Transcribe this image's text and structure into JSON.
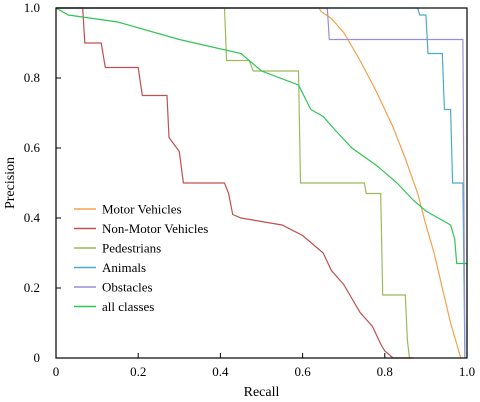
{
  "chart_data": {
    "type": "line",
    "xlabel": "Recall",
    "ylabel": "Precision",
    "xlim": [
      0,
      1
    ],
    "ylim": [
      0,
      1
    ],
    "x_ticks": [
      0,
      0.2,
      0.4,
      0.6,
      0.8,
      1
    ],
    "x_tick_labels": [
      "0",
      "0.2",
      "0.4",
      "0.6",
      "0.8",
      "1.0"
    ],
    "y_ticks": [
      0,
      0.2,
      0.4,
      0.6,
      0.8,
      1
    ],
    "y_tick_labels": [
      "0",
      "0.2",
      "0.4",
      "0.6",
      "0.8",
      "1.0"
    ],
    "grid": false,
    "legend_position": "bottom-left",
    "series": [
      {
        "name": "Motor Vehicles",
        "color": "#f5a04a",
        "points": [
          [
            0,
            1.0
          ],
          [
            0.64,
            1.0
          ],
          [
            0.645,
            0.99
          ],
          [
            0.67,
            0.97
          ],
          [
            0.7,
            0.93
          ],
          [
            0.74,
            0.85
          ],
          [
            0.78,
            0.76
          ],
          [
            0.82,
            0.66
          ],
          [
            0.85,
            0.57
          ],
          [
            0.88,
            0.47
          ],
          [
            0.9,
            0.38
          ],
          [
            0.92,
            0.3
          ],
          [
            0.94,
            0.2
          ],
          [
            0.96,
            0.1
          ],
          [
            0.98,
            0.02
          ],
          [
            0.985,
            0.0
          ]
        ]
      },
      {
        "name": "Non-Motor Vehicles",
        "color": "#c0504d",
        "points": [
          [
            0,
            1.0
          ],
          [
            0.065,
            1.0
          ],
          [
            0.07,
            0.9
          ],
          [
            0.11,
            0.9
          ],
          [
            0.12,
            0.83
          ],
          [
            0.2,
            0.83
          ],
          [
            0.21,
            0.75
          ],
          [
            0.27,
            0.75
          ],
          [
            0.275,
            0.63
          ],
          [
            0.3,
            0.59
          ],
          [
            0.31,
            0.5
          ],
          [
            0.41,
            0.5
          ],
          [
            0.42,
            0.47
          ],
          [
            0.43,
            0.41
          ],
          [
            0.45,
            0.4
          ],
          [
            0.55,
            0.38
          ],
          [
            0.6,
            0.35
          ],
          [
            0.65,
            0.3
          ],
          [
            0.67,
            0.25
          ],
          [
            0.7,
            0.21
          ],
          [
            0.72,
            0.17
          ],
          [
            0.74,
            0.13
          ],
          [
            0.77,
            0.09
          ],
          [
            0.79,
            0.04
          ],
          [
            0.8,
            0.02
          ],
          [
            0.82,
            0.0
          ],
          [
            0.87,
            0.0
          ]
        ]
      },
      {
        "name": "Pedestrians",
        "color": "#9bbb59",
        "points": [
          [
            0,
            1.0
          ],
          [
            0.41,
            1.0
          ],
          [
            0.415,
            0.85
          ],
          [
            0.47,
            0.85
          ],
          [
            0.48,
            0.82
          ],
          [
            0.59,
            0.82
          ],
          [
            0.595,
            0.5
          ],
          [
            0.75,
            0.5
          ],
          [
            0.755,
            0.47
          ],
          [
            0.79,
            0.47
          ],
          [
            0.795,
            0.18
          ],
          [
            0.85,
            0.18
          ],
          [
            0.855,
            0.05
          ],
          [
            0.86,
            0.0
          ]
        ]
      },
      {
        "name": "Animals",
        "color": "#4bacc6",
        "points": [
          [
            0,
            1.0
          ],
          [
            0.88,
            1.0
          ],
          [
            0.885,
            0.98
          ],
          [
            0.9,
            0.98
          ],
          [
            0.905,
            0.87
          ],
          [
            0.94,
            0.87
          ],
          [
            0.945,
            0.71
          ],
          [
            0.96,
            0.71
          ],
          [
            0.965,
            0.5
          ],
          [
            0.99,
            0.5
          ],
          [
            0.995,
            0.0
          ]
        ]
      },
      {
        "name": "Obstacles",
        "color": "#9b8fd1",
        "points": [
          [
            0,
            1.0
          ],
          [
            0.66,
            1.0
          ],
          [
            0.665,
            0.91
          ],
          [
            0.99,
            0.91
          ],
          [
            0.995,
            0.0
          ]
        ]
      },
      {
        "name": "all classes",
        "color": "#2dc653",
        "points": [
          [
            0,
            1.0
          ],
          [
            0.03,
            0.98
          ],
          [
            0.15,
            0.96
          ],
          [
            0.3,
            0.91
          ],
          [
            0.45,
            0.87
          ],
          [
            0.5,
            0.82
          ],
          [
            0.59,
            0.78
          ],
          [
            0.62,
            0.71
          ],
          [
            0.65,
            0.69
          ],
          [
            0.68,
            0.65
          ],
          [
            0.72,
            0.6
          ],
          [
            0.78,
            0.55
          ],
          [
            0.83,
            0.5
          ],
          [
            0.87,
            0.45
          ],
          [
            0.9,
            0.42
          ],
          [
            0.93,
            0.4
          ],
          [
            0.96,
            0.38
          ],
          [
            0.97,
            0.34
          ],
          [
            0.975,
            0.27
          ],
          [
            1.0,
            0.27
          ],
          [
            1.0,
            0.0
          ]
        ]
      }
    ]
  }
}
